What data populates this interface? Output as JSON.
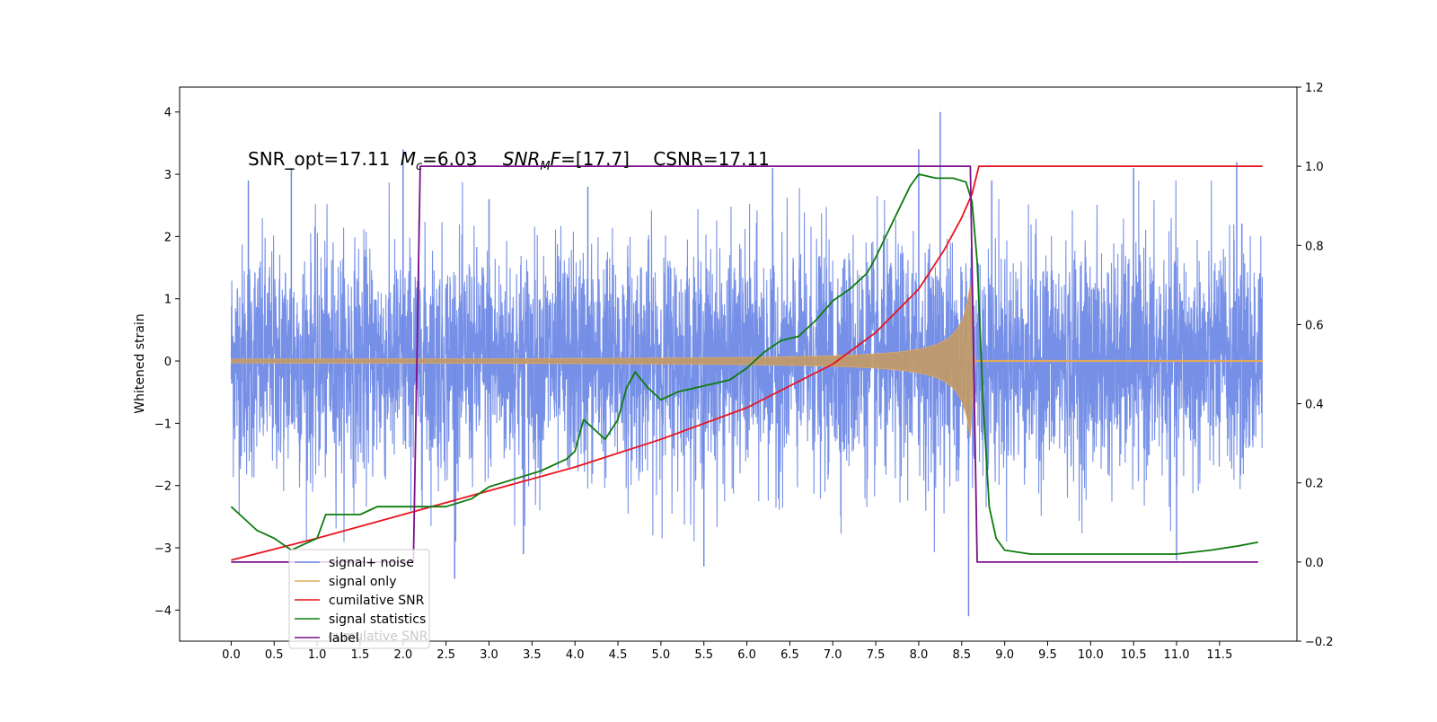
{
  "chart_data": {
    "type": "line",
    "title": "",
    "annotation": {
      "snr_opt": "SNR_opt=17.11",
      "mc_symbol": "M",
      "mc_sub": "c",
      "mc_value": "=6.03",
      "snrmf_symbol": "SNR",
      "snrmf_sub": "M",
      "snrmf_f": "F",
      "snrmf_value": "=[17.7]",
      "csnr": "CSNR=17.11"
    },
    "ylabel": "Whitened strain",
    "xlabel": "",
    "xlim": [
      -0.6,
      12.4
    ],
    "ylim_left": [
      -4.5,
      4.4
    ],
    "ylim_right": [
      -0.2,
      1.2
    ],
    "x_ticks": [
      "0.0",
      "0.5",
      "1.0",
      "1.5",
      "2.0",
      "2.5",
      "3.0",
      "3.5",
      "4.0",
      "4.5",
      "5.0",
      "5.5",
      "6.0",
      "6.5",
      "7.0",
      "7.5",
      "8.0",
      "8.5",
      "9.0",
      "9.5",
      "10.0",
      "10.5",
      "11.0",
      "11.5"
    ],
    "y_ticks_left": [
      "4",
      "3",
      "2",
      "1",
      "0",
      "−1",
      "−2",
      "−3",
      "−4"
    ],
    "y_ticks_right": [
      "1.2",
      "1.0",
      "0.8",
      "0.6",
      "0.4",
      "0.2",
      "0.0",
      "−0.2"
    ],
    "grid": false,
    "legend_position": "lower-left",
    "legend": [
      "signal+ noise",
      "signal only",
      "cumilative SNR",
      "signal statistics",
      "label",
      "cumulative SNR"
    ],
    "series": [
      {
        "name": "signal+ noise",
        "axis": "left",
        "color": "#6f8ae6",
        "x_range": [
          0.0,
          12.0
        ],
        "noise_sigma": 1.0,
        "spikes": [
          [
            0.2,
            2.9
          ],
          [
            0.7,
            3.1
          ],
          [
            2.0,
            3.4
          ],
          [
            3.0,
            2.6
          ],
          [
            4.15,
            2.8
          ],
          [
            6.3,
            3.1
          ],
          [
            8.0,
            3.4
          ],
          [
            8.25,
            4.0
          ],
          [
            8.58,
            -4.1
          ],
          [
            8.85,
            2.9
          ],
          [
            10.5,
            3.1
          ],
          [
            11.7,
            3.2
          ],
          [
            2.6,
            -3.5
          ],
          [
            5.5,
            -3.3
          ],
          [
            3.4,
            -3.1
          ],
          [
            11.0,
            -3.2
          ]
        ]
      },
      {
        "name": "signal only",
        "axis": "left",
        "color": "#e0a860",
        "x_range": [
          0.0,
          12.0
        ],
        "chirp_start": 0.0,
        "chirp_end": 8.6,
        "amplitude_start": 0.03,
        "amplitude_peak": 1.25
      },
      {
        "name": "cumilative SNR",
        "axis": "right",
        "color": "#e8141e",
        "points": [
          [
            0.0,
            0.005
          ],
          [
            1.0,
            0.06
          ],
          [
            2.0,
            0.12
          ],
          [
            3.0,
            0.18
          ],
          [
            4.0,
            0.24
          ],
          [
            5.0,
            0.31
          ],
          [
            6.0,
            0.39
          ],
          [
            7.0,
            0.5
          ],
          [
            7.5,
            0.58
          ],
          [
            8.0,
            0.69
          ],
          [
            8.3,
            0.79
          ],
          [
            8.5,
            0.87
          ],
          [
            8.62,
            0.93
          ],
          [
            8.7,
            1.0
          ],
          [
            12.0,
            1.0
          ]
        ]
      },
      {
        "name": "signal statistics",
        "axis": "right",
        "color": "#0d7b0d",
        "points": [
          [
            0.0,
            0.14
          ],
          [
            0.1,
            0.12
          ],
          [
            0.3,
            0.08
          ],
          [
            0.5,
            0.06
          ],
          [
            0.7,
            0.03
          ],
          [
            0.9,
            0.05
          ],
          [
            1.0,
            0.06
          ],
          [
            1.1,
            0.12
          ],
          [
            1.3,
            0.12
          ],
          [
            1.5,
            0.12
          ],
          [
            1.7,
            0.14
          ],
          [
            2.0,
            0.14
          ],
          [
            2.2,
            0.14
          ],
          [
            2.5,
            0.14
          ],
          [
            2.8,
            0.16
          ],
          [
            3.0,
            0.19
          ],
          [
            3.3,
            0.21
          ],
          [
            3.6,
            0.23
          ],
          [
            3.9,
            0.26
          ],
          [
            4.0,
            0.28
          ],
          [
            4.1,
            0.36
          ],
          [
            4.35,
            0.31
          ],
          [
            4.5,
            0.36
          ],
          [
            4.6,
            0.44
          ],
          [
            4.7,
            0.48
          ],
          [
            4.85,
            0.44
          ],
          [
            5.0,
            0.41
          ],
          [
            5.2,
            0.43
          ],
          [
            5.4,
            0.44
          ],
          [
            5.6,
            0.45
          ],
          [
            5.8,
            0.46
          ],
          [
            6.0,
            0.49
          ],
          [
            6.2,
            0.53
          ],
          [
            6.4,
            0.56
          ],
          [
            6.6,
            0.57
          ],
          [
            6.8,
            0.61
          ],
          [
            7.0,
            0.66
          ],
          [
            7.2,
            0.69
          ],
          [
            7.4,
            0.73
          ],
          [
            7.5,
            0.77
          ],
          [
            7.7,
            0.86
          ],
          [
            7.9,
            0.95
          ],
          [
            8.0,
            0.98
          ],
          [
            8.2,
            0.97
          ],
          [
            8.4,
            0.97
          ],
          [
            8.55,
            0.96
          ],
          [
            8.62,
            0.91
          ],
          [
            8.68,
            0.76
          ],
          [
            8.75,
            0.4
          ],
          [
            8.82,
            0.14
          ],
          [
            8.9,
            0.06
          ],
          [
            9.0,
            0.03
          ],
          [
            9.3,
            0.02
          ],
          [
            10.0,
            0.02
          ],
          [
            11.0,
            0.02
          ],
          [
            11.4,
            0.03
          ],
          [
            11.7,
            0.04
          ],
          [
            11.95,
            0.05
          ]
        ]
      },
      {
        "name": "label",
        "axis": "right",
        "color": "#7b0f8c",
        "points": [
          [
            0.0,
            0.0
          ],
          [
            2.12,
            0.0
          ],
          [
            2.2,
            1.0
          ],
          [
            8.6,
            1.0
          ],
          [
            8.68,
            0.0
          ],
          [
            11.95,
            0.0
          ]
        ]
      }
    ]
  },
  "colors": {
    "noise": "#6f8ae6",
    "signal": "#e0a860",
    "cumulative": "#e8141e",
    "statistics": "#0d7b0d",
    "label": "#7b0f8c"
  }
}
